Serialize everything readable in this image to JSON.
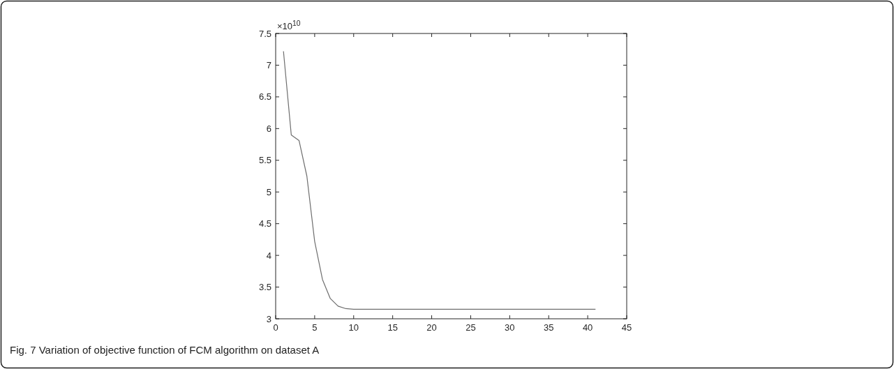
{
  "chart_data": {
    "type": "line",
    "x": [
      1,
      2,
      3,
      4,
      5,
      6,
      7,
      8,
      9,
      10,
      11,
      12,
      13,
      14,
      15,
      16,
      17,
      18,
      19,
      20,
      21,
      22,
      23,
      24,
      25,
      26,
      27,
      28,
      29,
      30,
      31,
      32,
      33,
      34,
      35,
      36,
      37,
      38,
      39,
      40,
      41
    ],
    "series": [
      {
        "color": "#6e6e6e",
        "values": [
          7.22,
          5.9,
          5.81,
          5.25,
          4.22,
          3.62,
          3.32,
          3.2,
          3.16,
          3.15,
          3.15,
          3.15,
          3.15,
          3.15,
          3.15,
          3.15,
          3.15,
          3.15,
          3.15,
          3.15,
          3.15,
          3.15,
          3.15,
          3.15,
          3.15,
          3.15,
          3.15,
          3.15,
          3.15,
          3.15,
          3.15,
          3.15,
          3.15,
          3.15,
          3.15,
          3.15,
          3.15,
          3.15,
          3.15,
          3.15,
          3.15
        ]
      }
    ],
    "xlim": [
      0,
      45
    ],
    "xticks": [
      0,
      5,
      10,
      15,
      20,
      25,
      30,
      35,
      40,
      45
    ],
    "ylim": [
      3,
      7.5
    ],
    "yticks": [
      3,
      3.5,
      4,
      4.5,
      5,
      5.5,
      6,
      6.5,
      7,
      7.5
    ],
    "grid": false,
    "marker": "none",
    "line_style": "solid",
    "annotations": [
      "×10$^{10}$",
      "Fig. 7 Variation of objective function of FCM algorithm on dataset A"
    ]
  }
}
